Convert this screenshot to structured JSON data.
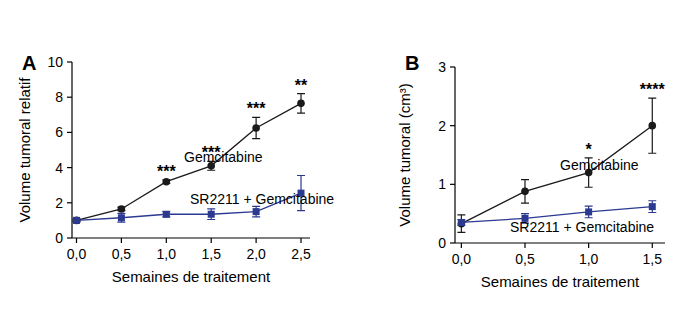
{
  "chart_data": [
    {
      "type": "line",
      "title": "A",
      "x_label": "Semaines de traitement",
      "y_label": "Volume tumoral relatif",
      "x": [
        0,
        0.5,
        1,
        1.5,
        2,
        2.5
      ],
      "xlim": [
        -0.05,
        2.6
      ],
      "xticks": [
        {
          "value": 0,
          "label": "0,0"
        },
        {
          "value": 0.5,
          "label": "0,5"
        },
        {
          "value": 1,
          "label": "1,0"
        },
        {
          "value": 1.5,
          "label": "1,5"
        },
        {
          "value": 2,
          "label": "2,0"
        },
        {
          "value": 2.5,
          "label": "2,5"
        }
      ],
      "ylim": [
        0,
        10
      ],
      "yticks": [
        0,
        2,
        4,
        6,
        8,
        10
      ],
      "series": [
        {
          "name": "Gemcitabine",
          "color": "#1a1a1a",
          "marker": "circle",
          "values": [
            1.0,
            1.65,
            3.2,
            4.1,
            6.25,
            7.65
          ],
          "errors": [
            0.05,
            0.1,
            0.1,
            0.25,
            0.6,
            0.55
          ]
        },
        {
          "name": "SR2211 + Gemcitabine",
          "color": "#2b3990",
          "marker": "square",
          "values": [
            1.0,
            1.15,
            1.35,
            1.35,
            1.5,
            2.55
          ],
          "errors": [
            0.1,
            0.25,
            0.15,
            0.3,
            0.3,
            1.0
          ]
        }
      ],
      "annotations": [
        {
          "x": 1,
          "text": "***"
        },
        {
          "x": 1.5,
          "text": "***"
        },
        {
          "x": 2,
          "text": "***"
        },
        {
          "x": 2.5,
          "text": "**"
        }
      ]
    },
    {
      "type": "line",
      "title": "B",
      "x_label": "Semaines de traitement",
      "y_label": "Volume tumoral (cm³)",
      "x": [
        0,
        0.5,
        1,
        1.5
      ],
      "xlim": [
        -0.05,
        1.6
      ],
      "xticks": [
        {
          "value": 0,
          "label": "0,0"
        },
        {
          "value": 0.5,
          "label": "0,5"
        },
        {
          "value": 1,
          "label": "1,0"
        },
        {
          "value": 1.5,
          "label": "1,5"
        }
      ],
      "ylim": [
        0,
        3
      ],
      "yticks": [
        0,
        1,
        2,
        3
      ],
      "series": [
        {
          "name": "Gemcitabine",
          "color": "#1a1a1a",
          "marker": "circle",
          "values": [
            0.33,
            0.88,
            1.2,
            2.0
          ],
          "errors": [
            0.15,
            0.2,
            0.25,
            0.47
          ]
        },
        {
          "name": "SR2211 + Gemcitabine",
          "color": "#2b3990",
          "marker": "square",
          "values": [
            0.35,
            0.42,
            0.53,
            0.62
          ],
          "errors": [
            0.05,
            0.08,
            0.1,
            0.1
          ]
        }
      ],
      "annotations": [
        {
          "x": 1,
          "text": "*"
        },
        {
          "x": 1.5,
          "text": "****"
        }
      ]
    }
  ]
}
